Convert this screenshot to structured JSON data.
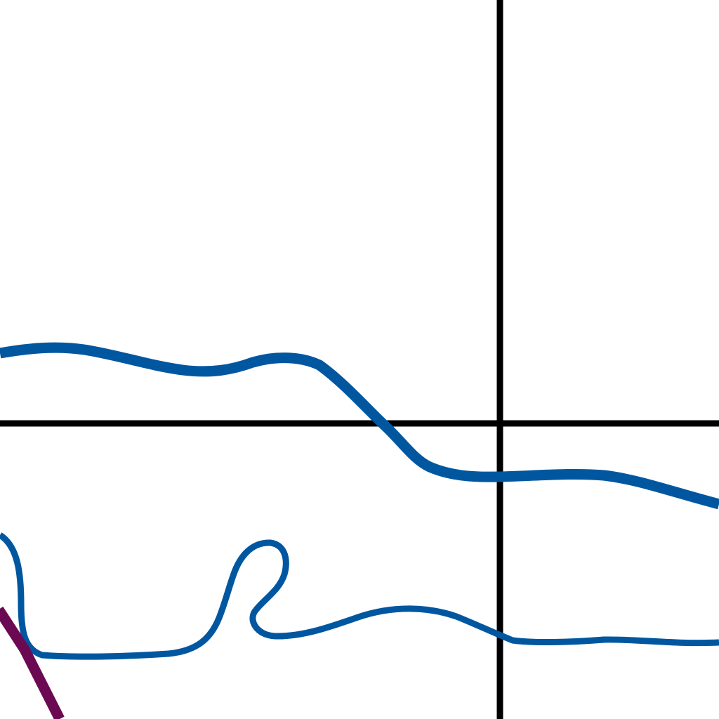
{
  "map": {
    "background": "#ffffff",
    "colors": {
      "grid_line": "#000000",
      "water_line": "#0057a0",
      "road_line": "#6b0a52"
    },
    "features": [
      "grid-line-vertical",
      "grid-line-horizontal",
      "river-upper",
      "river-lower",
      "road-segment"
    ]
  }
}
